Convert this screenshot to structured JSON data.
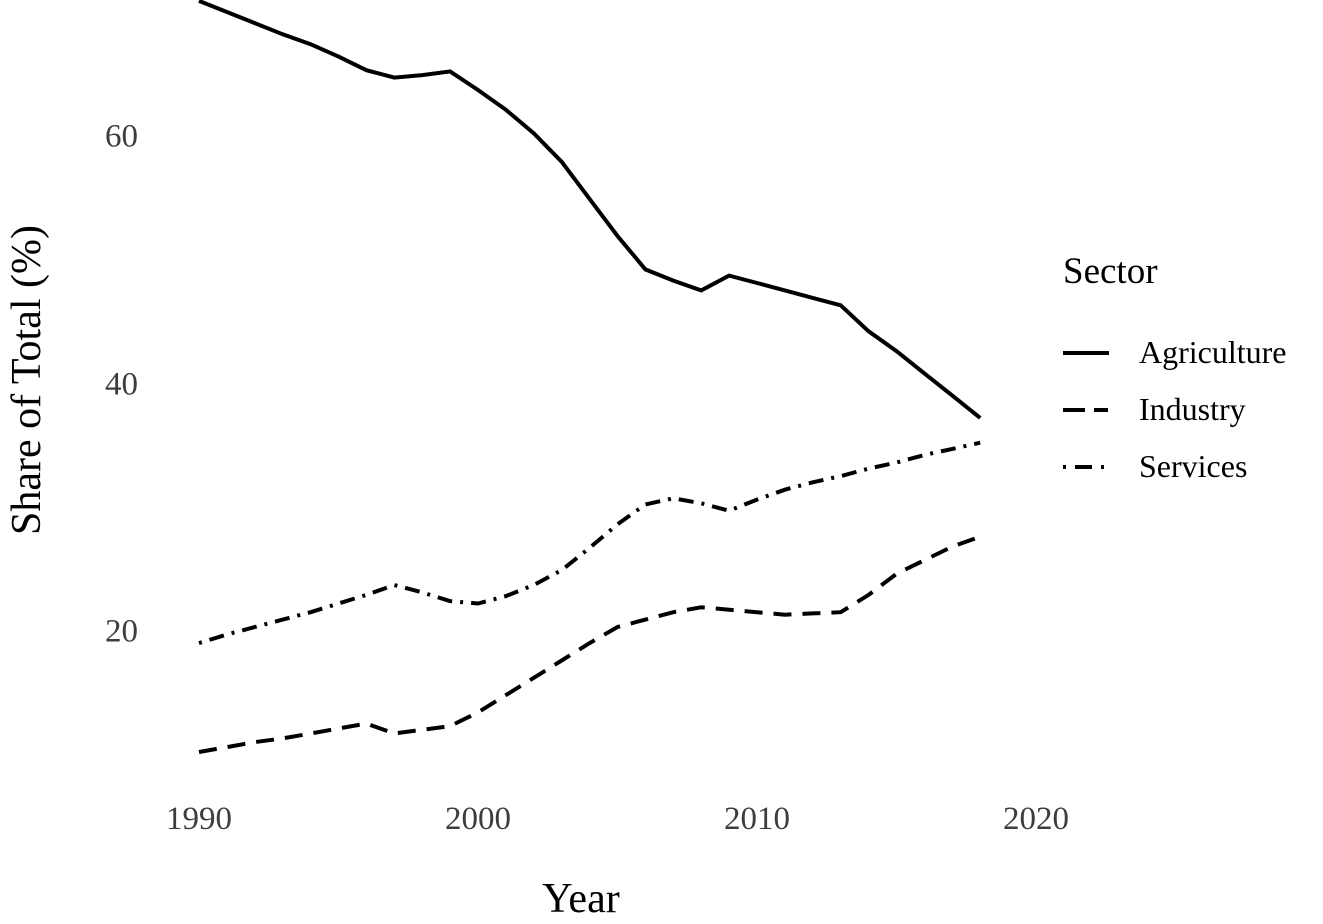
{
  "figure": {
    "background": "#ffffff",
    "line_color": "#000000",
    "tick_label_color": "#3d3d3d"
  },
  "chart_data": {
    "type": "line",
    "title": "",
    "xlabel": "Year",
    "ylabel": "Share of Total (%)",
    "x_ticks": [
      1990,
      2000,
      2010,
      2020
    ],
    "y_ticks": [
      20,
      40,
      60
    ],
    "x_range": [
      1990,
      2018
    ],
    "y_axis_span": [
      10,
      71
    ],
    "grid": false,
    "legend": {
      "title": "Sector",
      "position": "right"
    },
    "x": [
      1990,
      1991,
      1992,
      1993,
      1994,
      1995,
      1996,
      1997,
      1998,
      1999,
      2000,
      2001,
      2002,
      2003,
      2004,
      2005,
      2006,
      2007,
      2008,
      2009,
      2010,
      2011,
      2012,
      2013,
      2014,
      2015,
      2016,
      2017,
      2018
    ],
    "series": [
      {
        "name": "Agriculture",
        "linestyle": "solid",
        "color": "#000000",
        "values": [
          71.0,
          70.1,
          69.2,
          68.3,
          67.5,
          66.5,
          65.4,
          64.8,
          65.0,
          65.3,
          63.8,
          62.2,
          60.3,
          58.0,
          55.0,
          52.0,
          49.3,
          48.4,
          47.6,
          48.8,
          48.2,
          47.6,
          47.0,
          46.4,
          44.3,
          42.7,
          40.9,
          39.1,
          37.3
        ]
      },
      {
        "name": "Industry",
        "linestyle": "dashed",
        "color": "#000000",
        "values": [
          10.3,
          10.7,
          11.1,
          11.4,
          11.8,
          12.2,
          12.6,
          11.8,
          12.1,
          12.4,
          13.5,
          14.9,
          16.3,
          17.7,
          19.1,
          20.4,
          21.0,
          21.6,
          22.0,
          21.8,
          21.6,
          21.4,
          21.5,
          21.6,
          23.0,
          24.7,
          25.8,
          26.9,
          27.7
        ]
      },
      {
        "name": "Services",
        "linestyle": "dashdot",
        "color": "#000000",
        "values": [
          19.1,
          19.8,
          20.4,
          21.0,
          21.6,
          22.3,
          23.0,
          23.8,
          23.2,
          22.5,
          22.3,
          22.9,
          23.8,
          25.0,
          26.8,
          28.7,
          30.3,
          30.8,
          30.4,
          29.8,
          30.7,
          31.5,
          32.1,
          32.6,
          33.2,
          33.7,
          34.3,
          34.8,
          35.3
        ]
      }
    ]
  }
}
